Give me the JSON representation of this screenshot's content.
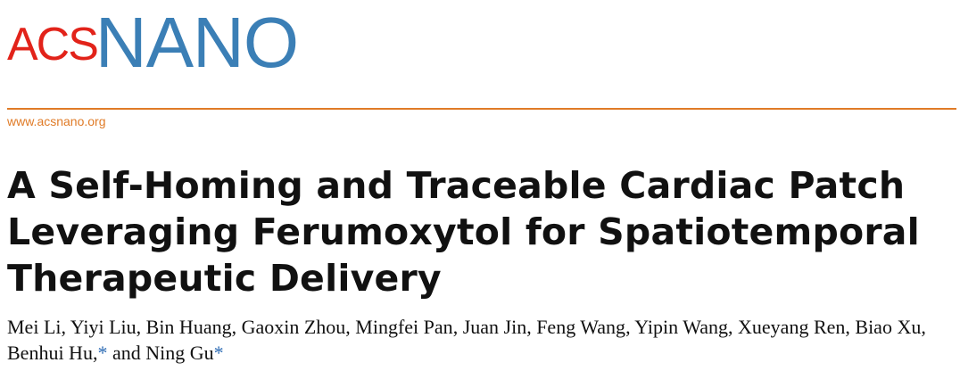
{
  "journal": {
    "logo_acs": "ACS",
    "logo_nano": "NANO",
    "url": "www.acsnano.org",
    "colors": {
      "acs_red": "#e2231a",
      "nano_blue": "#3b7fb6",
      "accent_orange": "#e07b27"
    }
  },
  "article": {
    "title_lines": [
      "A Self-Homing and Traceable Cardiac Patch",
      "Leveraging Ferumoxytol for Spatiotemporal",
      "Therapeutic Delivery"
    ],
    "authors": [
      {
        "name": "Mei Li",
        "corresponding": false
      },
      {
        "name": "Yiyi Liu",
        "corresponding": false
      },
      {
        "name": "Bin Huang",
        "corresponding": false
      },
      {
        "name": "Gaoxin Zhou",
        "corresponding": false
      },
      {
        "name": "Mingfei Pan",
        "corresponding": false
      },
      {
        "name": "Juan Jin",
        "corresponding": false
      },
      {
        "name": "Feng Wang",
        "corresponding": false
      },
      {
        "name": "Yipin Wang",
        "corresponding": false
      },
      {
        "name": "Xueyang Ren",
        "corresponding": false
      },
      {
        "name": "Biao Xu",
        "corresponding": false
      },
      {
        "name": "Benhui Hu",
        "corresponding": true
      },
      {
        "name": "Ning Gu",
        "corresponding": true
      }
    ],
    "corresponding_mark": "*",
    "conjunction": "and"
  }
}
